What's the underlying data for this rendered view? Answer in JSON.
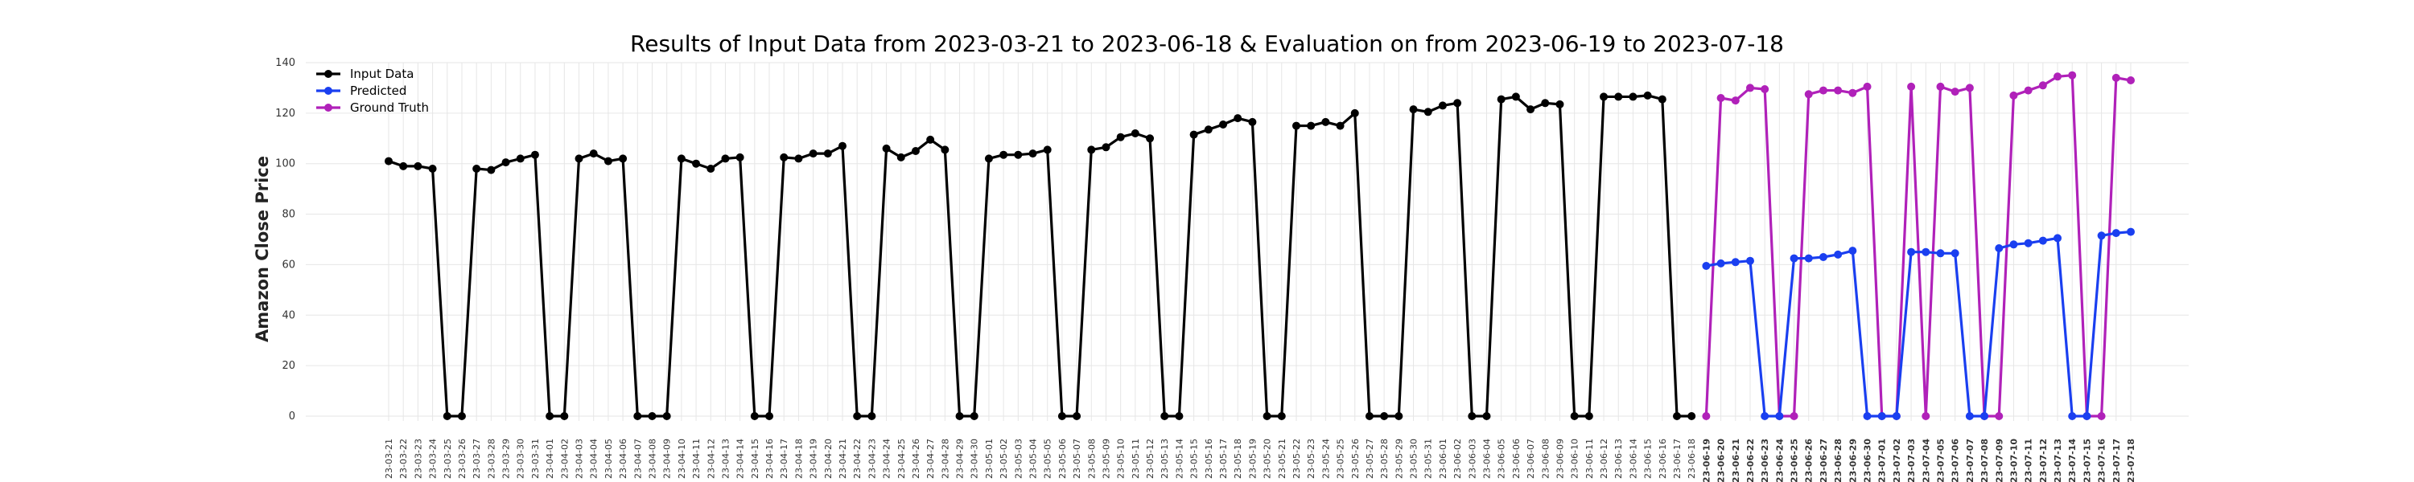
{
  "chart_data": {
    "type": "line",
    "title": "Results of Input Data from 2023-03-21 to 2023-06-18 & Evaluation on from 2023-06-19 to 2023-07-18",
    "xlabel": "",
    "ylabel": "Amazon Close Price",
    "ylim": [
      0,
      140
    ],
    "yticks": [
      0,
      20,
      40,
      60,
      80,
      100,
      120,
      140
    ],
    "grid": true,
    "legend_position": "top-left",
    "tick_prefix_hidden": "20",
    "tick_labels": [
      "23-03-21",
      "23-03-22",
      "23-03-23",
      "23-03-24",
      "23-03-25",
      "23-03-26",
      "23-03-27",
      "23-03-28",
      "23-03-29",
      "23-03-30",
      "23-03-31",
      "23-04-01",
      "23-04-02",
      "23-04-03",
      "23-04-04",
      "23-04-05",
      "23-04-06",
      "23-04-07",
      "23-04-08",
      "23-04-09",
      "23-04-10",
      "23-04-11",
      "23-04-12",
      "23-04-13",
      "23-04-14",
      "23-04-15",
      "23-04-16",
      "23-04-17",
      "23-04-18",
      "23-04-19",
      "23-04-20",
      "23-04-21",
      "23-04-22",
      "23-04-23",
      "23-04-24",
      "23-04-25",
      "23-04-26",
      "23-04-27",
      "23-04-28",
      "23-04-29",
      "23-04-30",
      "23-05-01",
      "23-05-02",
      "23-05-03",
      "23-05-04",
      "23-05-05",
      "23-05-06",
      "23-05-07",
      "23-05-08",
      "23-05-09",
      "23-05-10",
      "23-05-11",
      "23-05-12",
      "23-05-13",
      "23-05-14",
      "23-05-15",
      "23-05-16",
      "23-05-17",
      "23-05-18",
      "23-05-19",
      "23-05-20",
      "23-05-21",
      "23-05-22",
      "23-05-23",
      "23-05-24",
      "23-05-25",
      "23-05-26",
      "23-05-27",
      "23-05-28",
      "23-05-29",
      "23-05-30",
      "23-05-31",
      "23-06-01",
      "23-06-02",
      "23-06-03",
      "23-06-04",
      "23-06-05",
      "23-06-06",
      "23-06-07",
      "23-06-08",
      "23-06-09",
      "23-06-10",
      "23-06-11",
      "23-06-12",
      "23-06-13",
      "23-06-14",
      "23-06-15",
      "23-06-16",
      "23-06-17",
      "23-06-18",
      "23-06-19",
      "23-06-20",
      "23-06-21",
      "23-06-22",
      "23-06-23",
      "23-06-24",
      "23-06-25",
      "23-06-26",
      "23-06-27",
      "23-06-28",
      "23-06-29",
      "23-06-30",
      "23-07-01",
      "23-07-02",
      "23-07-03",
      "23-07-04",
      "23-07-05",
      "23-07-06",
      "23-07-07",
      "23-07-08",
      "23-07-09",
      "23-07-10",
      "23-07-11",
      "23-07-12",
      "23-07-13",
      "23-07-14",
      "23-07-15",
      "23-07-16",
      "23-07-17",
      "23-07-18"
    ],
    "eval_tick_start": 90,
    "series": [
      {
        "name": "Input Data",
        "color": "#000000",
        "start": 0,
        "values": [
          101,
          99,
          99,
          98,
          0,
          0,
          98,
          97.5,
          100.5,
          102,
          103.5,
          0,
          0,
          102,
          104,
          101,
          102,
          0,
          0,
          0,
          102,
          100,
          98,
          102,
          102.5,
          0,
          0,
          102.5,
          102,
          104,
          104,
          107,
          0,
          0,
          106,
          102.5,
          105,
          109.5,
          105.5,
          0,
          0,
          102,
          103.5,
          103.5,
          104,
          105.5,
          0,
          0,
          105.5,
          106.5,
          110.5,
          112,
          110,
          0,
          0,
          111.5,
          113.5,
          115.5,
          118,
          116.5,
          0,
          0,
          115,
          115,
          116.5,
          115,
          120,
          0,
          0,
          0,
          121.5,
          120.5,
          123,
          124,
          0,
          0,
          125.5,
          126.5,
          121.5,
          124,
          123.5,
          0,
          0,
          126.5,
          126.5,
          126.5,
          127,
          125.5,
          0,
          0
        ]
      },
      {
        "name": "Predicted",
        "color": "#1a3ff0",
        "start": 90,
        "values": [
          59.5,
          60.5,
          61,
          61.5,
          0,
          0,
          62.5,
          62.5,
          63,
          64,
          65.5,
          0,
          0,
          0,
          65,
          65,
          64.5,
          64.5,
          0,
          0,
          66.5,
          68,
          68.5,
          69.5,
          70.5,
          0,
          0,
          71.5,
          72.5,
          73
        ]
      },
      {
        "name": "Ground Truth",
        "color": "#b021b9",
        "start": 90,
        "values": [
          0,
          126,
          125,
          130,
          129.5,
          0,
          0,
          127.5,
          129,
          129,
          128,
          130.5,
          0,
          0,
          130.5,
          0,
          130.5,
          128.5,
          130,
          0,
          0,
          127,
          129,
          131,
          134.5,
          135,
          0,
          0,
          134,
          133
        ]
      }
    ]
  }
}
